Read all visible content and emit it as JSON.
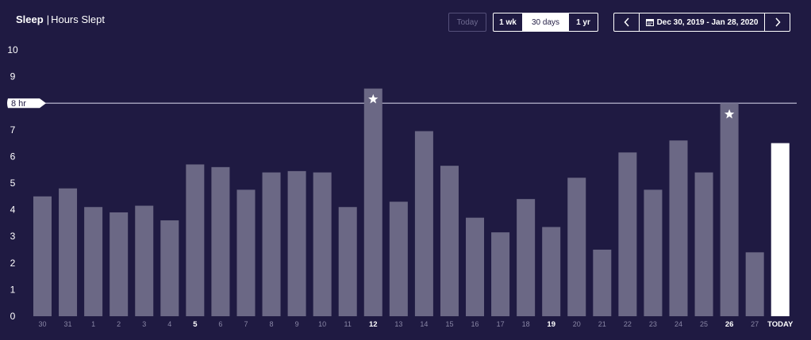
{
  "header": {
    "title_bold": "Sleep",
    "separator": "|",
    "title_rest": "Hours Slept"
  },
  "controls": {
    "today_label": "Today",
    "ranges": [
      {
        "label": "1 wk",
        "active": false
      },
      {
        "label": "30 days",
        "active": true
      },
      {
        "label": "1 yr",
        "active": false
      }
    ],
    "date_range": "Dec 30, 2019 - Jan 28, 2020",
    "icons": {
      "prev": "chevron-left-icon",
      "next": "chevron-right-icon",
      "calendar": "calendar-icon"
    }
  },
  "colors": {
    "background": "#1f1a42",
    "bar": "#6b6885",
    "bar_today": "#ffffff",
    "text": "#ffffff",
    "tick": "#8a87a6"
  },
  "chart_data": {
    "type": "bar",
    "title": "Hours Slept",
    "ylim": [
      0,
      10
    ],
    "yticks": [
      0,
      1,
      2,
      3,
      4,
      5,
      6,
      7,
      8,
      9,
      10
    ],
    "categories": [
      "30",
      "31",
      "1",
      "2",
      "3",
      "4",
      "5",
      "6",
      "7",
      "8",
      "9",
      "10",
      "11",
      "12",
      "13",
      "14",
      "15",
      "16",
      "17",
      "18",
      "19",
      "20",
      "21",
      "22",
      "23",
      "24",
      "25",
      "26",
      "27",
      "TODAY"
    ],
    "bold_categories": [
      "5",
      "12",
      "19",
      "26",
      "TODAY"
    ],
    "values": [
      4.5,
      4.8,
      4.1,
      3.9,
      4.15,
      3.6,
      5.7,
      5.6,
      4.75,
      5.4,
      5.45,
      5.4,
      4.1,
      8.55,
      4.3,
      6.95,
      5.65,
      3.7,
      3.15,
      4.4,
      3.35,
      5.2,
      2.5,
      6.15,
      4.75,
      6.6,
      5.4,
      8.0,
      2.4,
      6.5
    ],
    "goal_line": {
      "value": 8,
      "label": "8 hr"
    },
    "goal_met_marker": "star-icon",
    "grid": false
  }
}
